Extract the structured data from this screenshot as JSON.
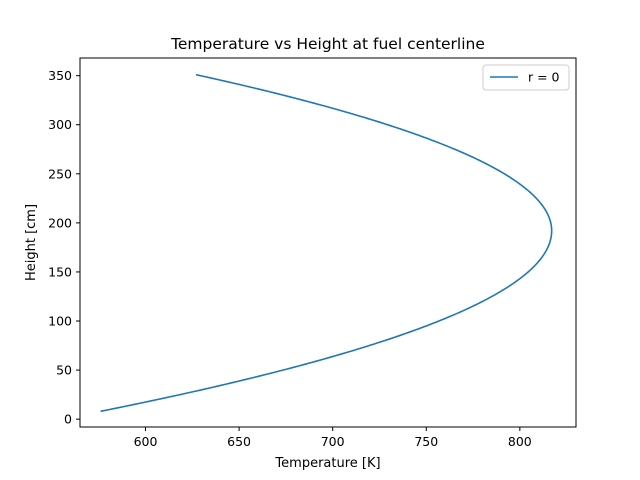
{
  "chart_data": {
    "type": "line",
    "title": "Temperature vs Height at fuel centerline",
    "xlabel": "Temperature [K]",
    "ylabel": "Height [cm]",
    "xlim": [
      565,
      830
    ],
    "ylim": [
      -8,
      368
    ],
    "xticks": [
      600,
      650,
      700,
      750,
      800
    ],
    "yticks": [
      0,
      50,
      100,
      150,
      200,
      250,
      300,
      350
    ],
    "grid": false,
    "legend_position": "top-right",
    "series": [
      {
        "name": "r = 0",
        "color": "#1f77b4",
        "peak": {
          "x": 817,
          "y": 192
        },
        "start": {
          "x": 576,
          "y": 8
        },
        "end": {
          "x": 627,
          "y": 351
        }
      }
    ]
  }
}
